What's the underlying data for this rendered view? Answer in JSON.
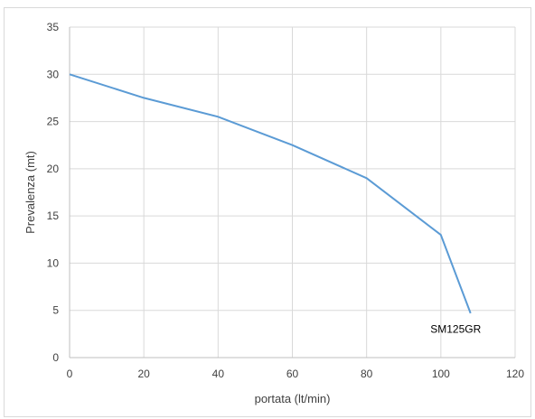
{
  "chart_data": {
    "type": "line",
    "title": "",
    "xlabel": "portata (lt/min)",
    "ylabel": "Prevalenza (mt)",
    "xlim": [
      0,
      120
    ],
    "ylim": [
      0,
      35
    ],
    "x_ticks": [
      "0",
      "20",
      "40",
      "60",
      "80",
      "100",
      "120"
    ],
    "y_ticks": [
      "0",
      "5",
      "10",
      "15",
      "20",
      "25",
      "30",
      "35"
    ],
    "grid": true,
    "legend": "none",
    "series": [
      {
        "x": [
          0,
          20,
          40,
          60,
          80,
          100,
          108
        ],
        "y": [
          30,
          27.5,
          25.5,
          22.5,
          19,
          13,
          4.7
        ],
        "color": "#5b9bd5"
      }
    ],
    "annotations": [
      {
        "text": "SM125GR",
        "x": 104,
        "y": 3
      }
    ]
  }
}
